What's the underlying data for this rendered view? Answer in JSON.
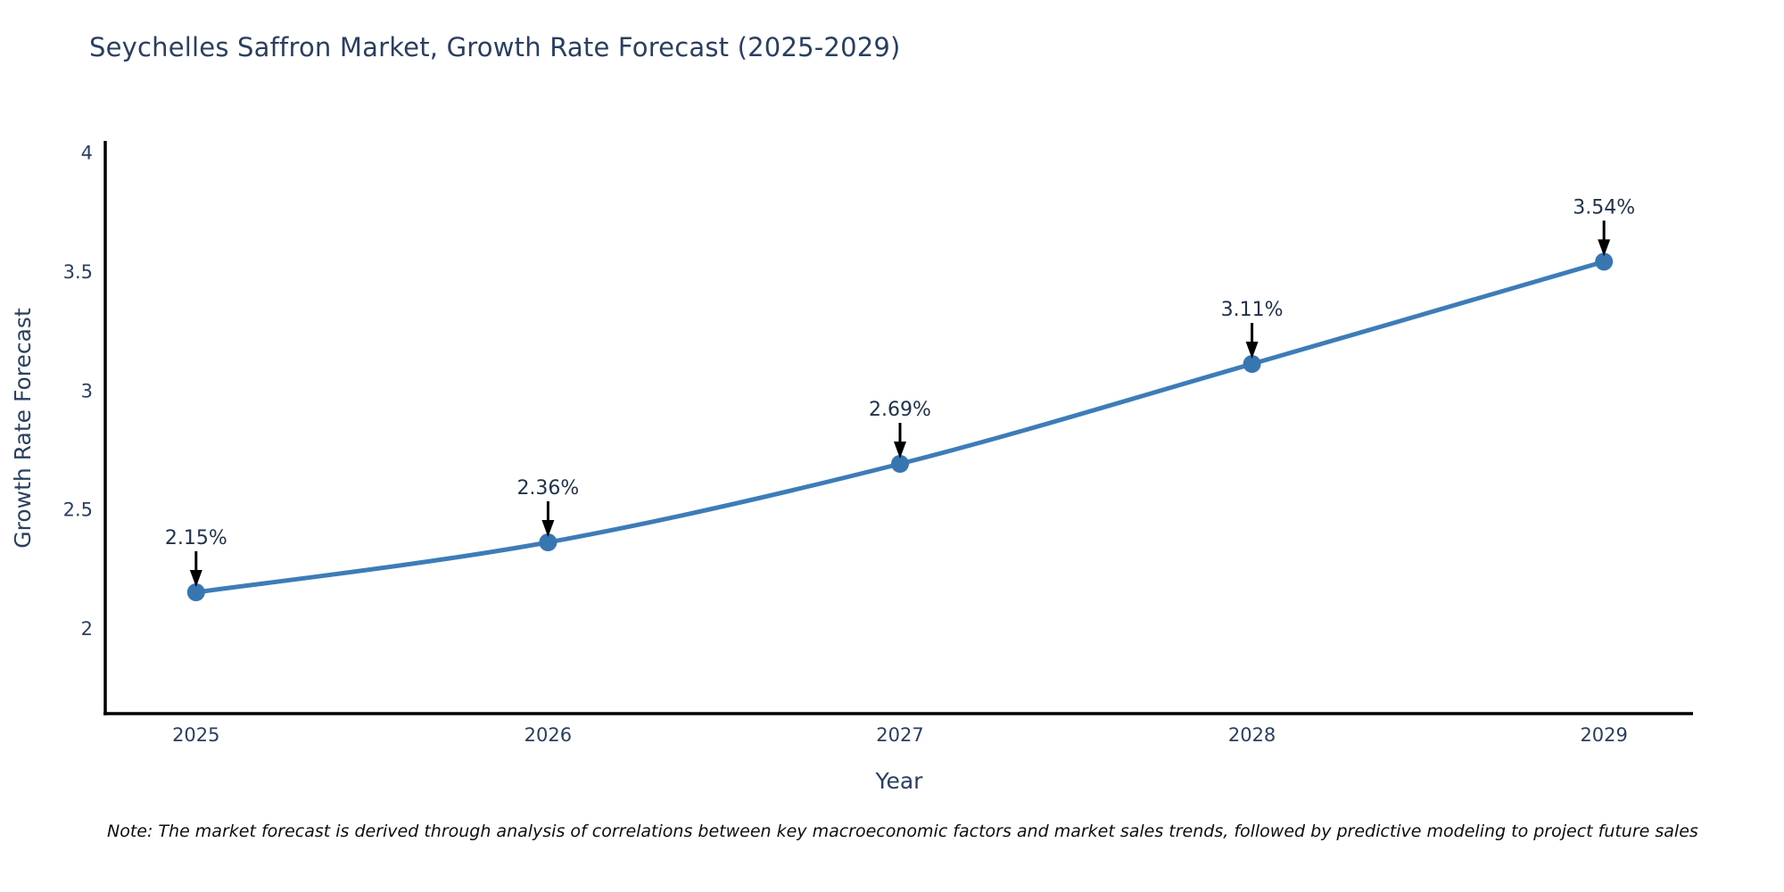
{
  "page": {
    "note": "Note: The market forecast is derived through analysis of correlations between key macroeconomic factors and market sales trends, followed by predictive modeling to project future sales"
  },
  "colors": {
    "background": "#ffffff",
    "title_text": "#2a3f5f",
    "axis_text": "#2a3f5f",
    "axis_line": "#000000",
    "series_line": "#3d7cb8",
    "marker_fill": "#3876b2",
    "annotation_text": "#22324a",
    "annotation_arrow": "#000000",
    "note_text": "#0d0d0d"
  },
  "chart_data": {
    "type": "line",
    "title": "Seychelles Saffron Market, Growth Rate Forecast (2025-2029)",
    "xlabel": "Year",
    "ylabel": "Growth Rate Forecast",
    "x": [
      2025,
      2026,
      2027,
      2028,
      2029
    ],
    "values": [
      2.15,
      2.36,
      2.69,
      3.11,
      3.54
    ],
    "point_labels": [
      "2.15%",
      "2.36%",
      "2.69%",
      "3.11%",
      "3.54%"
    ],
    "series": [
      {
        "name": "Growth Rate Forecast",
        "values": [
          2.15,
          2.36,
          2.69,
          3.11,
          3.54
        ]
      }
    ],
    "xlim": [
      2024.742,
      2029.253
    ],
    "ylim": [
      1.64,
      4.04
    ],
    "xticks": [
      2025,
      2026,
      2027,
      2028,
      2029
    ],
    "xtick_labels": [
      "2025",
      "2026",
      "2027",
      "2028",
      "2029"
    ],
    "yticks": [
      2,
      2.5,
      3,
      3.5,
      4
    ],
    "ytick_labels": [
      "2",
      "2.5",
      "3",
      "3.5",
      "4"
    ],
    "grid": false,
    "legend_position": "none",
    "line_shape": "spline",
    "line_width": 5,
    "marker_radius": 10
  }
}
